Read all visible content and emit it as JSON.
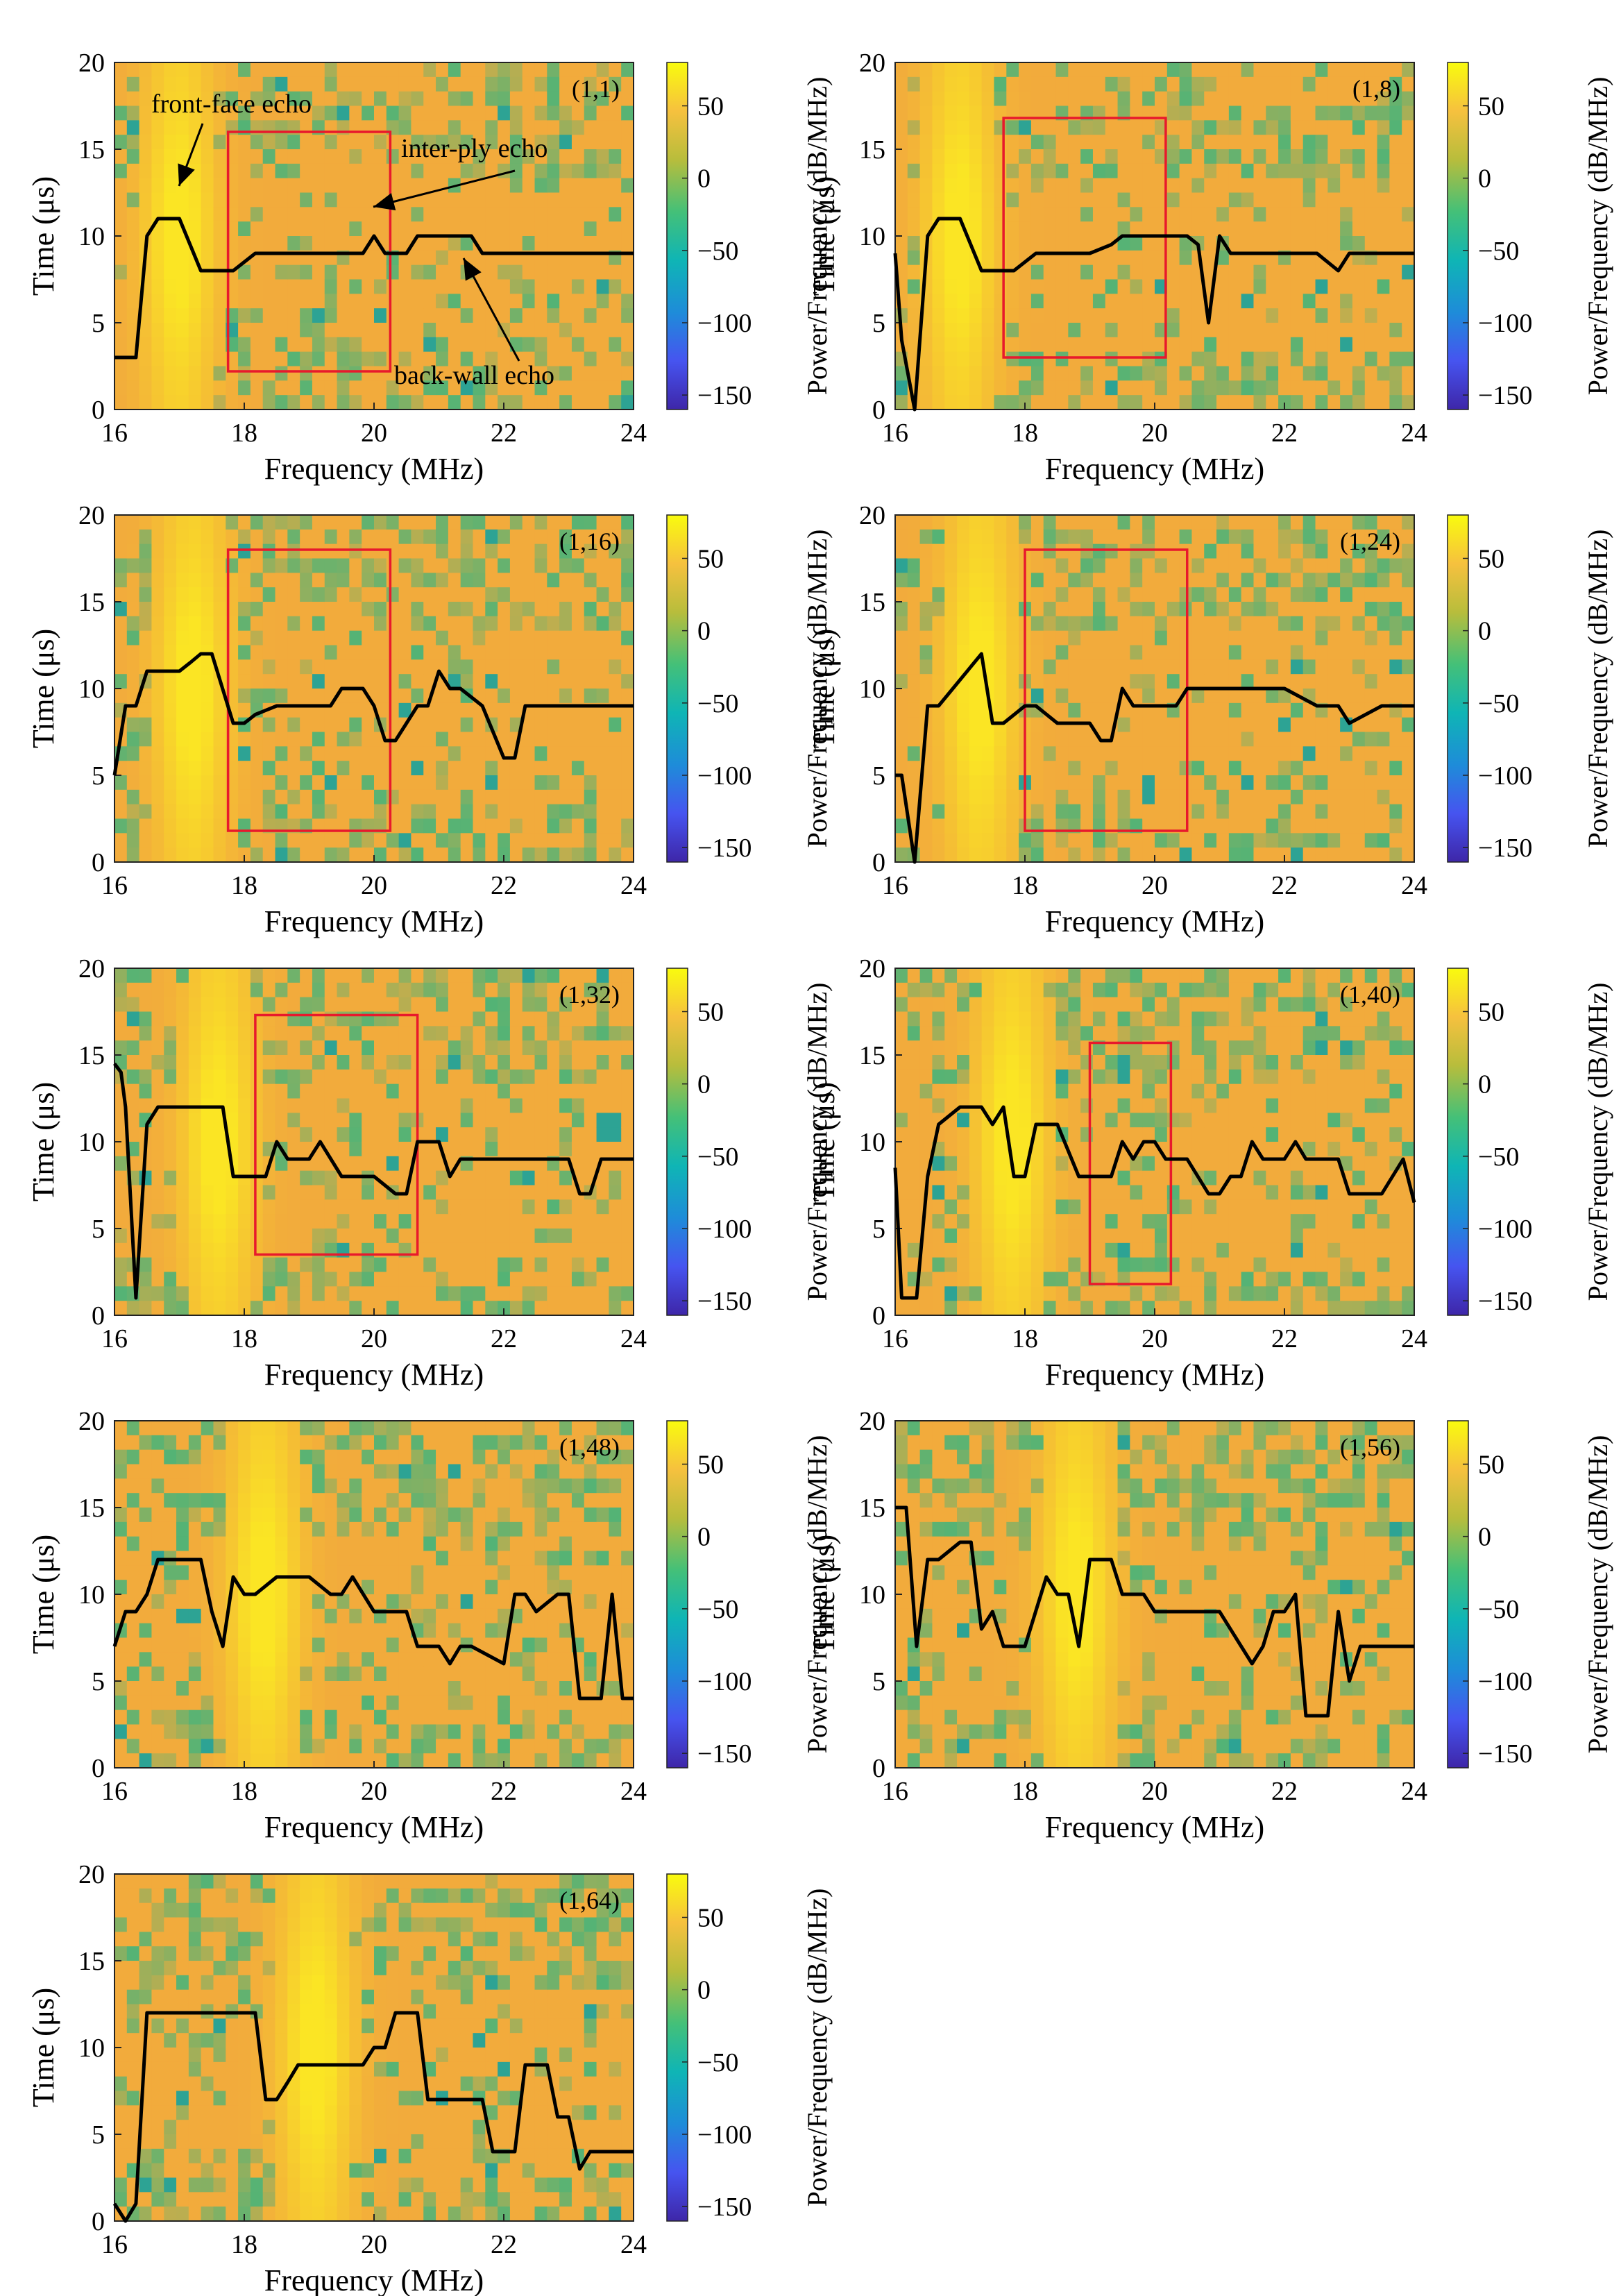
{
  "figure": {
    "colorbar": {
      "label": "Power/Frequency (dB/MHz)",
      "ticks": [
        50,
        0,
        -50,
        -100,
        -150
      ],
      "range": [
        -160,
        80
      ]
    },
    "colors": {
      "line": "#000000",
      "box": "#e8192c",
      "field_main": "#f2ab3c",
      "field_hot": "#fbe823",
      "field_cool": "#2bb584",
      "field_blue": "#3a3ff0"
    },
    "annotations": [
      "front-face echo",
      "inter-ply echo",
      "back-wall echo"
    ]
  },
  "chart_data": [
    {
      "type": "heatmap",
      "title": "(1,1)",
      "xlabel": "Frequency (MHz)",
      "ylabel": "Time (μs)",
      "xlim": [
        16,
        24
      ],
      "ylim": [
        0,
        20
      ],
      "xticks": [
        16,
        18,
        20,
        22,
        24
      ],
      "yticks": [
        0,
        5,
        10,
        15,
        20
      ],
      "hot_center_mhz": 17.0,
      "line": {
        "x": [
          16,
          16.33,
          16.5,
          16.67,
          17,
          17.33,
          17.83,
          18,
          18.17,
          18.5,
          19,
          19.5,
          19.83,
          20,
          20.17,
          20.5,
          20.67,
          21,
          21.33,
          21.5,
          21.67,
          22,
          22.5,
          23,
          23.5,
          24
        ],
        "y": [
          3,
          3,
          10,
          11,
          11,
          8,
          8,
          8.5,
          9,
          9,
          9,
          9,
          9,
          10,
          9,
          9,
          10,
          10,
          10,
          10,
          9,
          9,
          9,
          9,
          9,
          9
        ]
      },
      "box": {
        "x": [
          17.75,
          20.25
        ],
        "y": [
          2.2,
          16
        ]
      }
    },
    {
      "type": "heatmap",
      "title": "(1,8)",
      "xlabel": "Frequency (MHz)",
      "ylabel": "Time (μs)",
      "xlim": [
        16,
        24
      ],
      "ylim": [
        0,
        20
      ],
      "xticks": [
        16,
        18,
        20,
        22,
        24
      ],
      "yticks": [
        0,
        5,
        10,
        15,
        20
      ],
      "hot_center_mhz": 17.0,
      "line": {
        "x": [
          16,
          16.1,
          16.3,
          16.5,
          16.67,
          17,
          17.33,
          17.83,
          18,
          18.17,
          18.5,
          19,
          19.33,
          19.5,
          20,
          20.5,
          20.67,
          20.83,
          21,
          21.17,
          21.33,
          22,
          22.5,
          22.83,
          23,
          23.5,
          24
        ],
        "y": [
          9,
          4,
          0,
          10,
          11,
          11,
          8,
          8,
          8.5,
          9,
          9,
          9,
          9.5,
          10,
          10,
          10,
          9.5,
          5,
          10,
          9,
          9,
          9,
          9,
          8,
          9,
          9,
          9
        ]
      },
      "box": {
        "x": [
          17.67,
          20.17
        ],
        "y": [
          3,
          16.8
        ]
      }
    },
    {
      "type": "heatmap",
      "title": "(1,16)",
      "xlabel": "Frequency (MHz)",
      "ylabel": "Time (μs)",
      "xlim": [
        16,
        24
      ],
      "ylim": [
        0,
        20
      ],
      "xticks": [
        16,
        18,
        20,
        22,
        24
      ],
      "yticks": [
        0,
        5,
        10,
        15,
        20
      ],
      "hot_center_mhz": 17.2,
      "line": {
        "x": [
          16,
          16.17,
          16.33,
          16.5,
          16.67,
          17,
          17.17,
          17.33,
          17.5,
          17.83,
          18,
          18.17,
          18.5,
          19,
          19.33,
          19.5,
          19.83,
          20,
          20.17,
          20.33,
          20.5,
          20.67,
          20.83,
          21,
          21.17,
          21.33,
          21.5,
          21.67,
          22,
          22.17,
          22.33,
          22.5,
          22.83,
          23,
          23.5,
          24
        ],
        "y": [
          5,
          9,
          9,
          11,
          11,
          11,
          11.5,
          12,
          12,
          8,
          8,
          8.5,
          9,
          9,
          9,
          10,
          10,
          9,
          7,
          7,
          8,
          9,
          9,
          11,
          10,
          10,
          9.5,
          9,
          6,
          6,
          9,
          9,
          9,
          9,
          9,
          9
        ]
      },
      "box": {
        "x": [
          17.75,
          20.25
        ],
        "y": [
          1.8,
          18
        ]
      }
    },
    {
      "type": "heatmap",
      "title": "(1,24)",
      "xlabel": "Frequency (MHz)",
      "ylabel": "Time (μs)",
      "xlim": [
        16,
        24
      ],
      "ylim": [
        0,
        20
      ],
      "xticks": [
        16,
        18,
        20,
        22,
        24
      ],
      "yticks": [
        0,
        5,
        10,
        15,
        20
      ],
      "hot_center_mhz": 17.3,
      "line": {
        "x": [
          16,
          16.1,
          16.3,
          16.5,
          16.67,
          17,
          17.33,
          17.5,
          17.67,
          18,
          18.17,
          18.5,
          19,
          19.17,
          19.33,
          19.5,
          19.67,
          20,
          20.33,
          20.5,
          21,
          21.5,
          22,
          22.5,
          22.83,
          23,
          23.5,
          24
        ],
        "y": [
          5,
          5,
          0,
          9,
          9,
          10.5,
          12,
          8,
          8,
          9,
          9,
          8,
          8,
          7,
          7,
          10,
          9,
          9,
          9,
          10,
          10,
          10,
          10,
          9,
          9,
          8,
          9,
          9
        ]
      },
      "box": {
        "x": [
          18,
          20.5
        ],
        "y": [
          1.8,
          18
        ]
      }
    },
    {
      "type": "heatmap",
      "title": "(1,32)",
      "xlabel": "Frequency (MHz)",
      "ylabel": "Time (μs)",
      "xlim": [
        16,
        24
      ],
      "ylim": [
        0,
        20
      ],
      "xticks": [
        16,
        18,
        20,
        22,
        24
      ],
      "yticks": [
        0,
        5,
        10,
        15,
        20
      ],
      "hot_center_mhz": 17.6,
      "line": {
        "x": [
          16,
          16.1,
          16.17,
          16.33,
          16.5,
          16.67,
          17,
          17.33,
          17.5,
          17.67,
          17.83,
          18,
          18.33,
          18.5,
          18.67,
          19,
          19.17,
          19.5,
          20,
          20.33,
          20.5,
          20.67,
          21,
          21.17,
          21.33,
          22,
          22.5,
          23,
          23.17,
          23.33,
          23.5,
          24
        ],
        "y": [
          14.5,
          14,
          12,
          1,
          11,
          12,
          12,
          12,
          12,
          12,
          8,
          8,
          8,
          10,
          9,
          9,
          10,
          8,
          8,
          7,
          7,
          10,
          10,
          8,
          9,
          9,
          9,
          9,
          7,
          7,
          9,
          9
        ]
      },
      "box": {
        "x": [
          18.17,
          20.67
        ],
        "y": [
          3.5,
          17.3
        ]
      }
    },
    {
      "type": "heatmap",
      "title": "(1,40)",
      "xlabel": "Frequency (MHz)",
      "ylabel": "Time (μs)",
      "xlim": [
        16,
        24
      ],
      "ylim": [
        0,
        20
      ],
      "xticks": [
        16,
        18,
        20,
        22,
        24
      ],
      "yticks": [
        0,
        5,
        10,
        15,
        20
      ],
      "hot_center_mhz": 17.8,
      "line": {
        "x": [
          16,
          16.1,
          16.33,
          16.5,
          16.67,
          17,
          17.33,
          17.5,
          17.67,
          17.83,
          18,
          18.17,
          18.33,
          18.5,
          18.83,
          19,
          19.33,
          19.5,
          19.67,
          19.83,
          20,
          20.17,
          20.5,
          20.83,
          21,
          21.17,
          21.33,
          21.5,
          21.67,
          22,
          22.17,
          22.33,
          22.83,
          23,
          23.5,
          23.83,
          24
        ],
        "y": [
          8.5,
          1,
          1,
          8,
          11,
          12,
          12,
          11,
          12,
          8,
          8,
          11,
          11,
          11,
          8,
          8,
          8,
          10,
          9,
          10,
          10,
          9,
          9,
          7,
          7,
          8,
          8,
          10,
          9,
          9,
          10,
          9,
          9,
          7,
          7,
          9,
          6.5
        ]
      },
      "box": {
        "x": [
          19,
          20.25
        ],
        "y": [
          1.8,
          15.7
        ]
      }
    },
    {
      "type": "heatmap",
      "title": "(1,48)",
      "xlabel": "Frequency (MHz)",
      "ylabel": "Time (μs)",
      "xlim": [
        16,
        24
      ],
      "ylim": [
        0,
        20
      ],
      "xticks": [
        16,
        18,
        20,
        22,
        24
      ],
      "yticks": [
        0,
        5,
        10,
        15,
        20
      ],
      "hot_center_mhz": 18.3,
      "line": {
        "x": [
          16,
          16.17,
          16.33,
          16.5,
          16.67,
          17,
          17.33,
          17.5,
          17.67,
          17.83,
          18,
          18.17,
          18.5,
          19,
          19.33,
          19.5,
          19.67,
          20,
          20.17,
          20.33,
          20.5,
          20.67,
          21,
          21.17,
          21.33,
          21.5,
          22,
          22.17,
          22.33,
          22.5,
          22.83,
          23,
          23.17,
          23.33,
          23.5,
          23.67,
          23.83,
          24
        ],
        "y": [
          7,
          9,
          9,
          10,
          12,
          12,
          12,
          9,
          7,
          11,
          10,
          10,
          11,
          11,
          10,
          10,
          11,
          9,
          9,
          9,
          9,
          7,
          7,
          6,
          7,
          7,
          6,
          10,
          10,
          9,
          10,
          10,
          4,
          4,
          4,
          10,
          4,
          4
        ]
      },
      "box": null
    },
    {
      "type": "heatmap",
      "title": "(1,56)",
      "xlabel": "Frequency (MHz)",
      "ylabel": "Time (μs)",
      "xlim": [
        16,
        24
      ],
      "ylim": [
        0,
        20
      ],
      "xticks": [
        16,
        18,
        20,
        22,
        24
      ],
      "yticks": [
        0,
        5,
        10,
        15,
        20
      ],
      "hot_center_mhz": 18.8,
      "line": {
        "x": [
          16,
          16.17,
          16.33,
          16.5,
          16.67,
          17,
          17.17,
          17.33,
          17.5,
          17.67,
          17.83,
          18,
          18.33,
          18.5,
          18.67,
          18.83,
          19,
          19.17,
          19.33,
          19.5,
          19.67,
          19.83,
          20,
          20.17,
          20.5,
          21,
          21.5,
          21.67,
          21.83,
          22,
          22.17,
          22.33,
          22.5,
          22.67,
          22.83,
          23,
          23.17,
          23.33,
          23.5,
          24
        ],
        "y": [
          15,
          15,
          7,
          12,
          12,
          13,
          13,
          8,
          9,
          7,
          7,
          7,
          11,
          10,
          10,
          7,
          12,
          12,
          12,
          10,
          10,
          10,
          9,
          9,
          9,
          9,
          6,
          7,
          9,
          9,
          10,
          3,
          3,
          3,
          9,
          5,
          7,
          7,
          7,
          7
        ]
      },
      "box": null
    },
    {
      "type": "heatmap",
      "title": "(1,64)",
      "xlabel": "Frequency (MHz)",
      "ylabel": "Time (μs)",
      "xlim": [
        16,
        24
      ],
      "ylim": [
        0,
        20
      ],
      "xticks": [
        16,
        18,
        20,
        22,
        24
      ],
      "yticks": [
        0,
        5,
        10,
        15,
        20
      ],
      "hot_center_mhz": 19.1,
      "line": {
        "x": [
          16,
          16.17,
          16.33,
          16.5,
          16.67,
          17,
          17.5,
          18,
          18.17,
          18.33,
          18.5,
          18.67,
          18.83,
          19,
          19.5,
          19.83,
          20,
          20.17,
          20.33,
          20.5,
          20.67,
          20.83,
          21,
          21.5,
          21.67,
          21.83,
          22,
          22.17,
          22.33,
          22.5,
          22.67,
          22.83,
          23,
          23.17,
          23.33,
          23.5,
          24
        ],
        "y": [
          1,
          0,
          1,
          12,
          12,
          12,
          12,
          12,
          12,
          7,
          7,
          8,
          9,
          9,
          9,
          9,
          10,
          10,
          12,
          12,
          12,
          7,
          7,
          7,
          7,
          4,
          4,
          4,
          9,
          9,
          9,
          6,
          6,
          3,
          4,
          4,
          4
        ]
      },
      "box": null
    }
  ]
}
